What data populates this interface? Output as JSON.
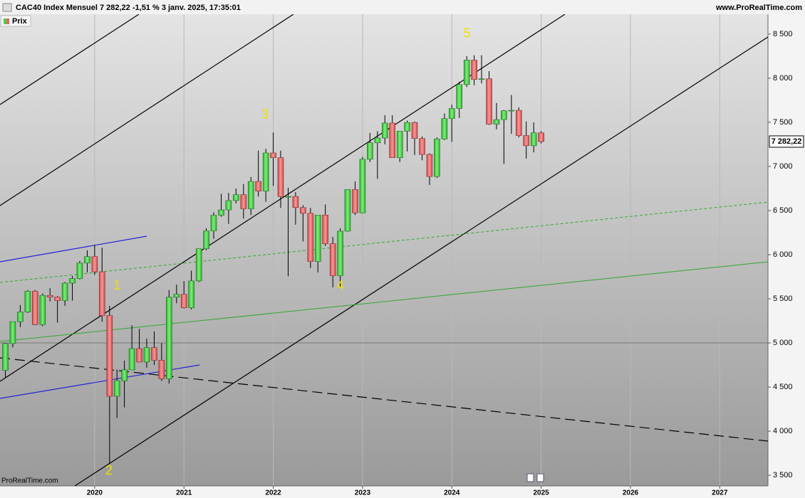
{
  "chart_data": {
    "type": "candlestick",
    "title": "CAC40 Index Mensuel 7 282,22 -1,51 % 3 janv. 2025, 17:35:01",
    "source": "www.ProRealTime.com",
    "legend": "Prix",
    "watermark": "ProRealTime.com",
    "up_color": "#44d444",
    "down_color": "#e86464",
    "x": [
      2019.0,
      2019.083,
      2019.167,
      2019.25,
      2019.333,
      2019.417,
      2019.5,
      2019.583,
      2019.667,
      2019.75,
      2019.833,
      2019.917,
      2020.0,
      2020.083,
      2020.167,
      2020.25,
      2020.333,
      2020.417,
      2020.5,
      2020.583,
      2020.667,
      2020.75,
      2020.833,
      2020.917,
      2021.0,
      2021.083,
      2021.167,
      2021.25,
      2021.333,
      2021.417,
      2021.5,
      2021.583,
      2021.667,
      2021.75,
      2021.833,
      2021.917,
      2022.0,
      2022.083,
      2022.167,
      2022.25,
      2022.333,
      2022.417,
      2022.5,
      2022.583,
      2022.667,
      2022.75,
      2022.833,
      2022.917,
      2023.0,
      2023.083,
      2023.167,
      2023.25,
      2023.333,
      2023.417,
      2023.5,
      2023.583,
      2023.667,
      2023.75,
      2023.833,
      2023.917,
      2024.0,
      2024.083,
      2024.167,
      2024.25,
      2024.333,
      2024.417,
      2024.5,
      2024.583,
      2024.667,
      2024.75,
      2024.833,
      2024.917,
      2025.0
    ],
    "open": [
      4690,
      4993,
      5241,
      5351,
      5586,
      5208,
      5539,
      5519,
      5480,
      5678,
      5730,
      5905,
      5978,
      5806,
      5310,
      4396,
      4572,
      4695,
      4936,
      4784,
      4947,
      4803,
      4594,
      5518,
      5551,
      5399,
      5703,
      6067,
      6269,
      6447,
      6508,
      6613,
      6680,
      6520,
      6830,
      6721,
      7153,
      7099,
      6659,
      6660,
      6534,
      6469,
      5923,
      6449,
      6125,
      5762,
      6267,
      6739,
      6474,
      7082,
      7268,
      7322,
      7492,
      7099,
      7400,
      7498,
      7317,
      7136,
      6886,
      7311,
      7543,
      7657,
      7928,
      8206,
      7985,
      7993,
      7479,
      7531,
      7631,
      7636,
      7350,
      7235,
      7381
    ],
    "high": [
      5000,
      5241,
      5430,
      5600,
      5600,
      5560,
      5620,
      5530,
      5690,
      5760,
      5930,
      6050,
      6111,
      6080,
      5420,
      4700,
      4800,
      5200,
      5160,
      5050,
      5130,
      5000,
      5600,
      5660,
      5700,
      5820,
      6070,
      6300,
      6480,
      6690,
      6700,
      6750,
      6800,
      6880,
      7180,
      7200,
      7384,
      7180,
      6760,
      6710,
      6560,
      6530,
      6450,
      6570,
      6200,
      6300,
      6740,
      6830,
      7110,
      7380,
      7400,
      7580,
      7580,
      7400,
      7520,
      7510,
      7340,
      7150,
      7330,
      7600,
      7700,
      7960,
      8250,
      8260,
      8260,
      8080,
      7720,
      7640,
      7810,
      7670,
      7510,
      7500,
      7400
    ],
    "low": [
      4611,
      4950,
      5180,
      5340,
      5200,
      5190,
      5470,
      5230,
      5420,
      5480,
      5720,
      5800,
      5770,
      5240,
      3632,
      4150,
      4270,
      4700,
      4780,
      4720,
      4750,
      4570,
      4540,
      5450,
      5390,
      5380,
      5690,
      6050,
      6180,
      6430,
      6350,
      6580,
      6410,
      6450,
      6660,
      6600,
      6780,
      6530,
      5756,
      6340,
      6150,
      5850,
      5800,
      6100,
      5630,
      5630,
      6260,
      6450,
      6470,
      7050,
      6860,
      7250,
      7100,
      7050,
      7170,
      7130,
      7070,
      6790,
      6870,
      7300,
      7280,
      7550,
      7900,
      7920,
      7940,
      7470,
      7420,
      7030,
      7370,
      7330,
      7090,
      7160,
      7260
    ],
    "close": [
      4993,
      5241,
      5351,
      5586,
      5208,
      5539,
      5519,
      5480,
      5678,
      5730,
      5905,
      5978,
      5806,
      5310,
      4396,
      4572,
      4695,
      4936,
      4784,
      4947,
      4803,
      4594,
      5518,
      5551,
      5399,
      5703,
      6067,
      6269,
      6447,
      6508,
      6613,
      6680,
      6520,
      6830,
      6721,
      7153,
      7099,
      6659,
      6660,
      6534,
      6469,
      5923,
      6449,
      6125,
      5762,
      6267,
      6739,
      6474,
      7082,
      7268,
      7322,
      7492,
      7099,
      7400,
      7498,
      7317,
      7136,
      6886,
      7311,
      7543,
      7657,
      7928,
      8206,
      7985,
      7993,
      7479,
      7531,
      7631,
      7636,
      7350,
      7235,
      7381,
      7282
    ],
    "last_price": {
      "value": 7282.22,
      "label": "7 282,22"
    },
    "reference_line": 5000,
    "annotations": [
      {
        "text": "1",
        "x": 2020.25,
        "y": 5645
      },
      {
        "text": "2",
        "x": 2020.16,
        "y": 3548
      },
      {
        "text": "3",
        "x": 2021.91,
        "y": 7581
      },
      {
        "text": "4",
        "x": 2022.75,
        "y": 5645
      },
      {
        "text": "5",
        "x": 2024.17,
        "y": 8500
      }
    ],
    "xlim": [
      2018.94,
      2027.54
    ],
    "xticks": [
      2020,
      2021,
      2022,
      2023,
      2024,
      2025,
      2026,
      2027
    ],
    "ylim": [
      3380,
      8725
    ],
    "yticks": [
      {
        "value": 3500,
        "label": "3 500"
      },
      {
        "value": 4000,
        "label": "4 000"
      },
      {
        "value": 4500,
        "label": "4 500"
      },
      {
        "value": 5000,
        "label": "5 000"
      },
      {
        "value": 5500,
        "label": "5 500"
      },
      {
        "value": 6000,
        "label": "6 000"
      },
      {
        "value": 6500,
        "label": "6 500"
      },
      {
        "value": 7000,
        "label": "7 000"
      },
      {
        "value": 7500,
        "label": "7 500"
      },
      {
        "value": 8000,
        "label": "8 000"
      },
      {
        "value": 8500,
        "label": "8 500"
      }
    ],
    "grid": true
  }
}
